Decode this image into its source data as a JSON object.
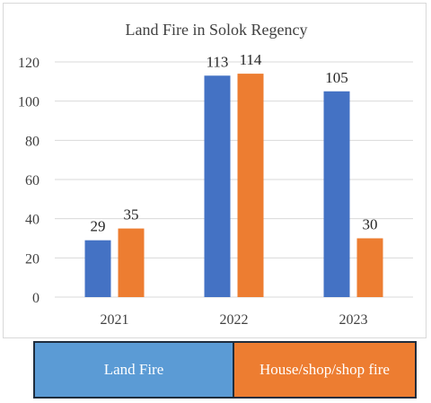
{
  "chart_data": {
    "type": "bar",
    "title": "Land Fire in Solok Regency",
    "categories": [
      "2021",
      "2022",
      "2023"
    ],
    "series": [
      {
        "name": "Land Fire",
        "values": [
          29,
          113,
          105
        ],
        "color": "#4472c4"
      },
      {
        "name": "House/shop/shop fire",
        "values": [
          35,
          114,
          30
        ],
        "color": "#ed7d31"
      }
    ],
    "yticks": [
      "0",
      "20",
      "40",
      "60",
      "80",
      "100",
      "120"
    ],
    "ylim": [
      0,
      120
    ],
    "grid": true,
    "legend_position": "bottom"
  },
  "legend": {
    "land_label": "Land Fire",
    "land_color": "#5b9bd5",
    "house_label": "House/shop/shop fire",
    "house_color": "#ed7d31"
  }
}
